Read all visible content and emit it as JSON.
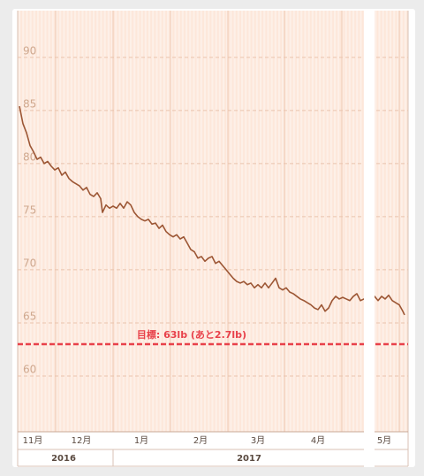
{
  "chart_data": {
    "type": "line",
    "x": [
      0,
      2,
      4,
      6,
      8,
      10,
      12,
      14,
      16,
      18,
      20,
      22,
      24,
      26,
      28,
      30,
      32,
      34,
      36,
      38,
      40,
      42,
      44,
      46,
      47,
      49,
      51,
      53,
      55,
      57,
      59,
      61,
      63,
      65,
      67,
      69,
      71,
      73,
      75,
      77,
      79,
      81,
      83,
      85,
      87,
      89,
      91,
      93,
      95,
      97,
      99,
      101,
      103,
      105,
      107,
      109,
      111,
      113,
      115,
      117,
      119,
      121,
      123,
      125,
      127,
      129,
      131,
      133,
      135,
      137,
      139,
      141,
      143,
      145,
      147,
      149,
      151,
      153,
      155,
      157,
      159,
      161,
      163,
      165,
      167,
      169,
      171,
      173,
      175,
      177,
      179,
      181,
      183,
      185,
      187,
      189,
      191,
      193,
      195,
      201,
      203,
      205,
      207,
      209,
      211,
      213,
      215,
      217,
      218
    ],
    "series": [
      {
        "color": "#9c5634",
        "values": [
          85.4,
          83.75,
          82.9,
          81.7,
          81.1,
          80.4,
          80.6,
          80,
          80.2,
          79.75,
          79.4,
          79.6,
          78.9,
          79.2,
          78.6,
          78.3,
          78.1,
          77.9,
          77.5,
          77.75,
          77.1,
          76.9,
          77.25,
          76.7,
          75.4,
          76.1,
          75.8,
          76,
          75.8,
          76.25,
          75.8,
          76.4,
          76.1,
          75.4,
          75,
          74.75,
          74.6,
          74.75,
          74.3,
          74.4,
          73.9,
          74.2,
          73.6,
          73.3,
          73.1,
          73.3,
          72.9,
          73.1,
          72.5,
          71.9,
          71.7,
          71.1,
          71.25,
          70.8,
          71.1,
          71.25,
          70.6,
          70.8,
          70.4,
          70,
          69.6,
          69.2,
          68.9,
          68.75,
          68.9,
          68.6,
          68.75,
          68.3,
          68.6,
          68.3,
          68.75,
          68.3,
          68.75,
          69.2,
          68.3,
          68.1,
          68.3,
          67.9,
          67.75,
          67.5,
          67.25,
          67.1,
          66.9,
          66.7,
          66.4,
          66.25,
          66.7,
          66.1,
          66.4,
          67.1,
          67.5,
          67.25,
          67.4,
          67.25,
          67.1,
          67.5,
          67.75,
          67.1,
          67.25,
          67.5,
          67.1,
          67.5,
          67.25,
          67.6,
          67.1,
          66.9,
          66.7,
          66.1,
          65.75
        ]
      }
    ],
    "xlim": [
      0,
      218
    ],
    "xticks": [
      {
        "value": 7.5,
        "label": "11月"
      },
      {
        "value": 35,
        "label": "12月"
      },
      {
        "value": 69,
        "label": "1月"
      },
      {
        "value": 102.5,
        "label": "2月"
      },
      {
        "value": 135,
        "label": "3月"
      },
      {
        "value": 169,
        "label": "4月"
      },
      {
        "value": 206.5,
        "label": "5月"
      }
    ],
    "ylim": [
      55,
      94.4
    ],
    "yticks": [
      60,
      65,
      70,
      75,
      80,
      85,
      90
    ],
    "grid": true,
    "goal": {
      "value": 63,
      "label": "目標: 63lb (あと2.7lb)",
      "color": "#e8414a"
    },
    "years": [
      "2016",
      "2017"
    ]
  }
}
